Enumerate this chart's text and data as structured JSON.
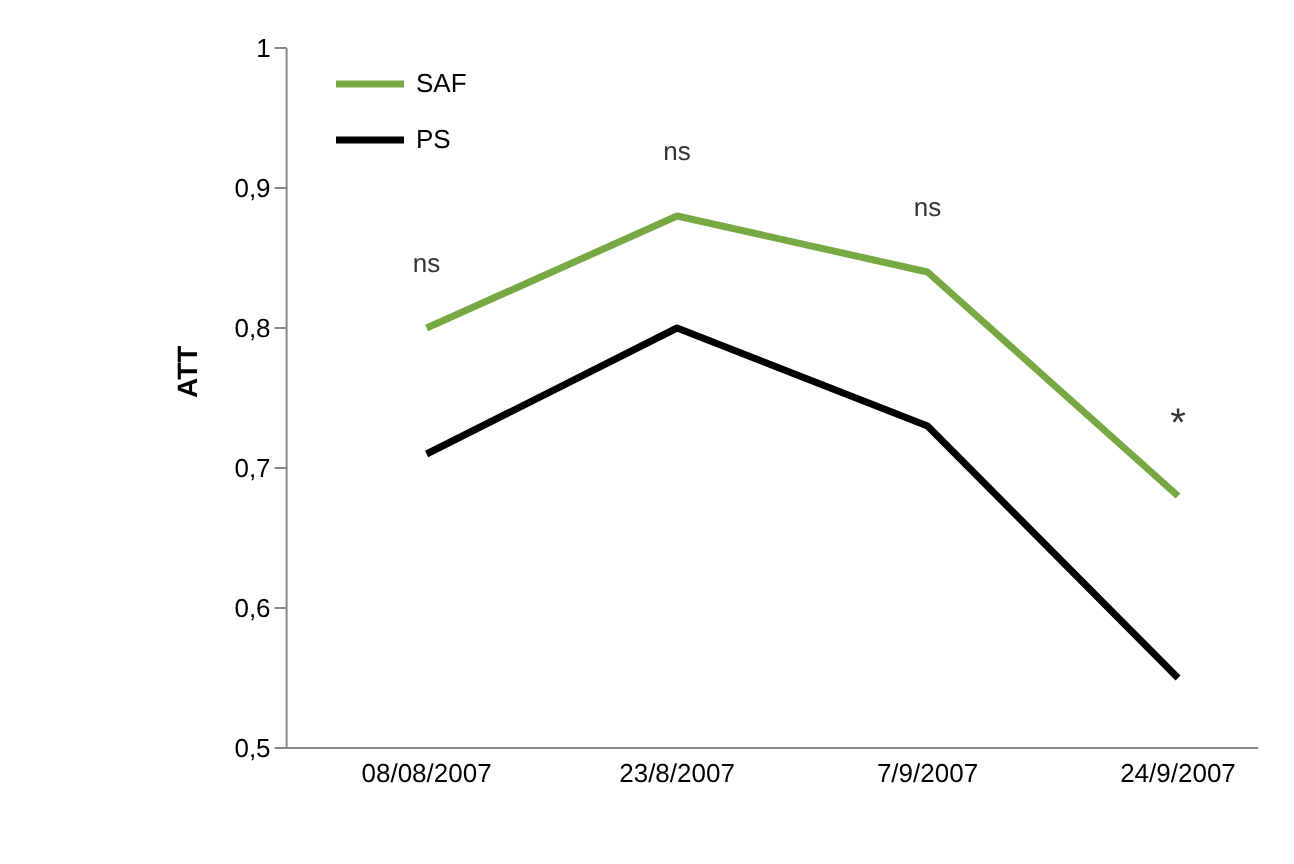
{
  "chart_data": {
    "type": "line",
    "ylabel": "ATT",
    "categories": [
      "08/08/2007",
      "23/8/2007",
      "7/9/2007",
      "24/9/2007"
    ],
    "series": [
      {
        "name": "SAF",
        "color": "#77a844",
        "values": [
          0.8,
          0.88,
          0.84,
          0.68
        ]
      },
      {
        "name": "PS",
        "color": "#000000",
        "values": [
          0.71,
          0.8,
          0.73,
          0.55
        ]
      }
    ],
    "ylim": [
      0.5,
      1
    ],
    "yticks": [
      {
        "value": 0.5,
        "label": "0,5"
      },
      {
        "value": 0.6,
        "label": "0,6"
      },
      {
        "value": 0.7,
        "label": "0,7"
      },
      {
        "value": 0.8,
        "label": "0,8"
      },
      {
        "value": 0.9,
        "label": "0,9"
      },
      {
        "value": 1,
        "label": "1"
      }
    ],
    "annotations": [
      "ns",
      "ns",
      "ns",
      "*"
    ],
    "grid": false,
    "legend": "top left",
    "marker": "none",
    "line_style": "solid"
  }
}
